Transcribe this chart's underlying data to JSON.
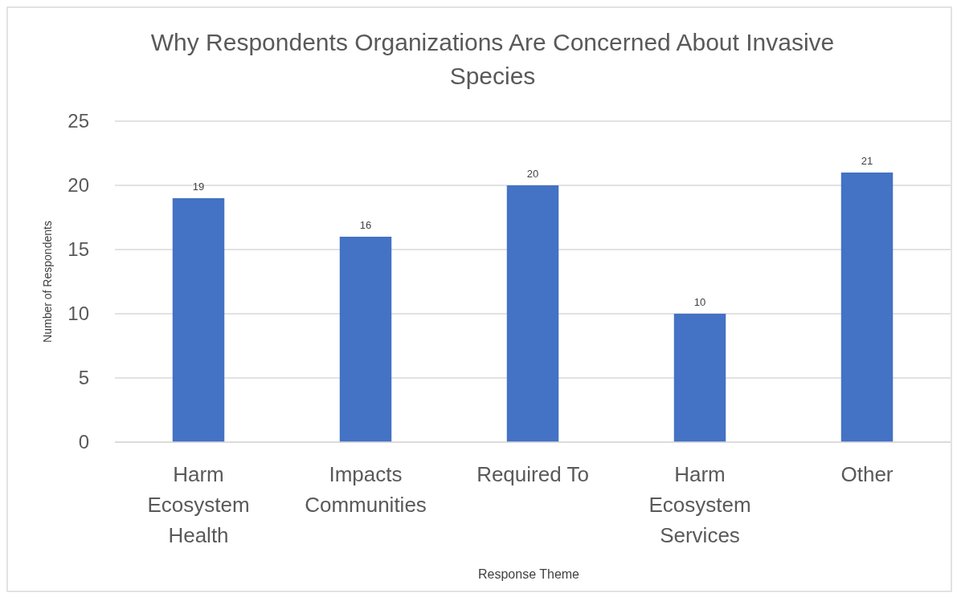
{
  "chart_data": {
    "type": "bar",
    "title": "Why Respondents Organizations Are Concerned About Invasive Species",
    "xlabel": "Response Theme",
    "ylabel": "Number of Respondents",
    "categories": [
      "Harm Ecosystem Health",
      "Impacts Communities",
      "Required To",
      "Harm Ecosystem Services",
      "Other"
    ],
    "values": [
      19,
      16,
      20,
      10,
      21
    ],
    "color": "#4472c4",
    "ylim": [
      0,
      25
    ],
    "yticks": [
      0,
      5,
      10,
      15,
      20,
      25
    ],
    "grid": "y",
    "data_labels": true
  }
}
